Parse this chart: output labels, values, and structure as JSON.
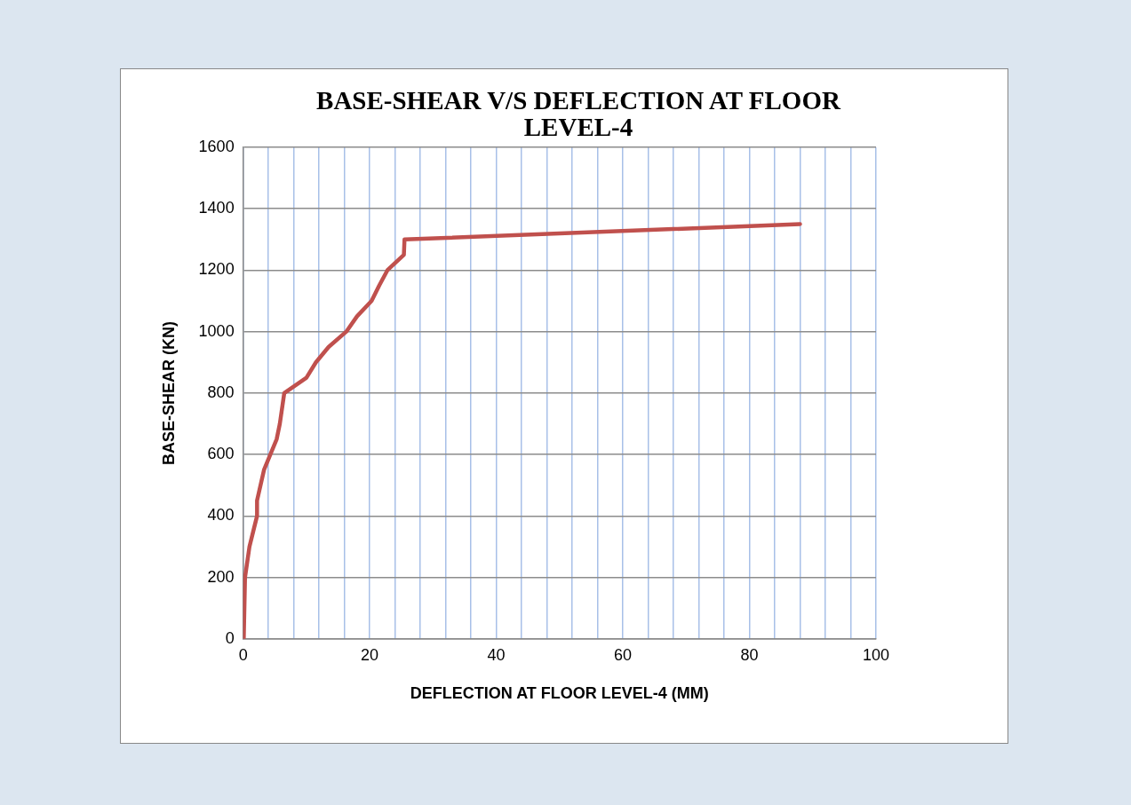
{
  "chart_data": {
    "type": "line",
    "title": "BASE-SHEAR  V/S DEFLECTION AT FLOOR LEVEL-4",
    "xlabel": "DEFLECTION AT FLOOR LEVEL-4 (MM)",
    "ylabel": "BASE-SHEAR (KN)",
    "series": [
      {
        "color": "#c0504d",
        "x": [
          0.1,
          0.3,
          1,
          1.6,
          2.2,
          2.2,
          3.3,
          5.3,
          5.8,
          6.5,
          10,
          11.5,
          13.5,
          16.3,
          18,
          20.3,
          21.5,
          22.8,
          25.4,
          25.5,
          88
        ],
        "values": [
          0,
          200,
          300,
          350,
          400,
          450,
          550,
          650,
          700,
          800,
          850,
          900,
          950,
          1000,
          1050,
          1100,
          1150,
          1200,
          1250,
          1300,
          1350
        ]
      }
    ],
    "xlim": [
      0,
      100
    ],
    "xticks": [
      0,
      {
        "value": 4,
        "label": null
      },
      {
        "value": 8,
        "label": null
      },
      {
        "value": 12,
        "label": null
      },
      {
        "value": 16,
        "label": null
      },
      20,
      {
        "value": 24,
        "label": null
      },
      {
        "value": 28,
        "label": null
      },
      {
        "value": 32,
        "label": null
      },
      {
        "value": 36,
        "label": null
      },
      40,
      {
        "value": 44,
        "label": null
      },
      {
        "value": 48,
        "label": null
      },
      {
        "value": 52,
        "label": null
      },
      {
        "value": 56,
        "label": null
      },
      60,
      {
        "value": 64,
        "label": null
      },
      {
        "value": 68,
        "label": null
      },
      {
        "value": 72,
        "label": null
      },
      {
        "value": 76,
        "label": null
      },
      80,
      {
        "value": 84,
        "label": null
      },
      {
        "value": 88,
        "label": null
      },
      {
        "value": 92,
        "label": null
      },
      {
        "value": 96,
        "label": null
      },
      100
    ],
    "ylim": [
      0,
      1600
    ],
    "yticks": [
      0,
      200,
      400,
      600,
      800,
      1000,
      1200,
      1400,
      1600
    ],
    "grid": true,
    "legend": false,
    "marker": "none",
    "line_style": "solid"
  }
}
